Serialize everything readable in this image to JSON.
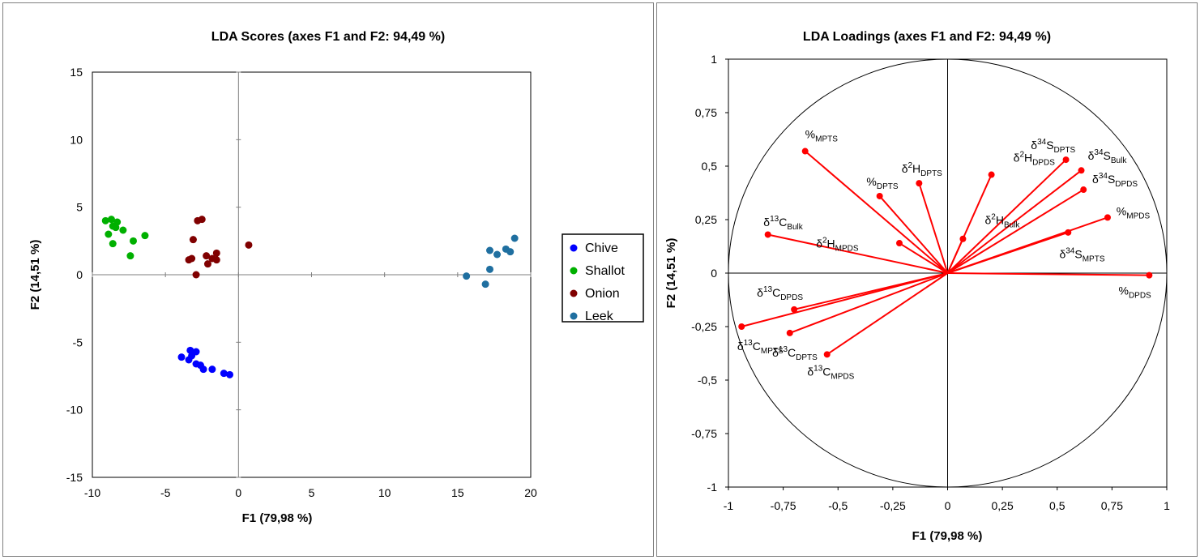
{
  "chart_data": [
    {
      "type": "scatter",
      "title": "LDA Scores (axes F1 and F2: 94,49 %)",
      "xlabel": "F1 (79,98 %)",
      "ylabel": "F2 (14,51 %)",
      "xlim": [
        -10,
        20
      ],
      "ylim": [
        -15,
        15
      ],
      "xticks": [
        -10,
        -5,
        0,
        5,
        10,
        15,
        20
      ],
      "yticks": [
        15,
        10,
        5,
        0,
        -5,
        -10,
        -15
      ],
      "xtick_labels": [
        "-10",
        "-5",
        "0",
        "5",
        "10",
        "15",
        "20"
      ],
      "ytick_labels": [
        "15",
        "10",
        "5",
        "0",
        "-5",
        "-10",
        "-15"
      ],
      "legend_position": "right",
      "series": [
        {
          "name": "Chive",
          "color": "#0000ff",
          "points": [
            [
              -3.9,
              -6.1
            ],
            [
              -3.4,
              -6.3
            ],
            [
              -3.3,
              -5.6
            ],
            [
              -2.9,
              -5.7
            ],
            [
              -3.2,
              -6.0
            ],
            [
              -2.9,
              -6.6
            ],
            [
              -2.6,
              -6.7
            ],
            [
              -2.4,
              -7.0
            ],
            [
              -1.8,
              -7.0
            ],
            [
              -1.0,
              -7.3
            ],
            [
              -0.6,
              -7.4
            ]
          ]
        },
        {
          "name": "Shallot",
          "color": "#00b000",
          "points": [
            [
              -9.1,
              4.0
            ],
            [
              -8.7,
              4.1
            ],
            [
              -8.3,
              3.9
            ],
            [
              -8.4,
              3.5
            ],
            [
              -8.6,
              3.6
            ],
            [
              -7.9,
              3.3
            ],
            [
              -8.9,
              3.0
            ],
            [
              -8.6,
              2.3
            ],
            [
              -7.2,
              2.5
            ],
            [
              -6.4,
              2.9
            ],
            [
              -7.4,
              1.4
            ]
          ]
        },
        {
          "name": "Onion",
          "color": "#800000",
          "points": [
            [
              -2.8,
              4.0
            ],
            [
              -2.5,
              4.1
            ],
            [
              -3.1,
              2.6
            ],
            [
              -2.2,
              1.4
            ],
            [
              -1.5,
              1.6
            ],
            [
              -3.4,
              1.1
            ],
            [
              -3.2,
              1.2
            ],
            [
              -2.1,
              0.8
            ],
            [
              -1.8,
              1.2
            ],
            [
              -1.5,
              1.1
            ],
            [
              -2.9,
              0.0
            ],
            [
              0.7,
              2.2
            ]
          ]
        },
        {
          "name": "Leek",
          "color": "#1f6fa0",
          "points": [
            [
              15.6,
              -0.1
            ],
            [
              17.2,
              1.8
            ],
            [
              17.7,
              1.5
            ],
            [
              18.3,
              1.9
            ],
            [
              18.6,
              1.7
            ],
            [
              18.9,
              2.7
            ],
            [
              17.2,
              0.4
            ],
            [
              16.9,
              -0.7
            ]
          ]
        }
      ]
    },
    {
      "type": "scatter",
      "subtype": "correlation-circle",
      "title": "LDA Loadings (axes F1 and F2: 94,49 %)",
      "xlabel": "F1 (79,98 %)",
      "ylabel": "F2 (14,51 %)",
      "xlim": [
        -1,
        1
      ],
      "ylim": [
        -1,
        1
      ],
      "xticks": [
        -1,
        -0.75,
        -0.5,
        -0.25,
        0,
        0.25,
        0.5,
        0.75,
        1
      ],
      "yticks": [
        1,
        0.75,
        0.5,
        0.25,
        0,
        -0.25,
        -0.5,
        -0.75,
        -1
      ],
      "xtick_labels": [
        "-1",
        "-0,75",
        "-0,5",
        "-0,25",
        "0",
        "0,25",
        "0,5",
        "0,75",
        "1"
      ],
      "ytick_labels": [
        "1",
        "0,75",
        "0,5",
        "0,25",
        "0",
        "-0,25",
        "-0,5",
        "-0,75",
        "-1"
      ],
      "vector_color": "#ff0000",
      "vectors": [
        {
          "pre": "%",
          "sup": "",
          "base": "",
          "sub": "MPTS",
          "x": -0.65,
          "y": 0.57,
          "anchor": "start",
          "dx": 0.0,
          "dy": 0.06
        },
        {
          "pre": "%",
          "sup": "",
          "base": "",
          "sub": "DPTS",
          "x": -0.31,
          "y": 0.36,
          "anchor": "start",
          "dx": -0.06,
          "dy": 0.05
        },
        {
          "pre": "δ",
          "sup": "2",
          "base": "H",
          "sub": "DPTS",
          "x": -0.13,
          "y": 0.42,
          "anchor": "start",
          "dx": -0.08,
          "dy": 0.05
        },
        {
          "pre": "δ",
          "sup": "2",
          "base": "H",
          "sub": "DPDS",
          "x": 0.2,
          "y": 0.46,
          "anchor": "start",
          "dx": 0.1,
          "dy": 0.06
        },
        {
          "pre": "δ",
          "sup": "34",
          "base": "S",
          "sub": "DPTS",
          "x": 0.54,
          "y": 0.53,
          "anchor": "start",
          "dx": -0.16,
          "dy": 0.05
        },
        {
          "pre": "δ",
          "sup": "34",
          "base": "S",
          "sub": "Bulk",
          "x": 0.61,
          "y": 0.48,
          "anchor": "start",
          "dx": 0.03,
          "dy": 0.05
        },
        {
          "pre": "δ",
          "sup": "34",
          "base": "S",
          "sub": "DPDS",
          "x": 0.62,
          "y": 0.39,
          "anchor": "start",
          "dx": 0.04,
          "dy": 0.03
        },
        {
          "pre": "δ",
          "sup": "2",
          "base": "H",
          "sub": "Bulk",
          "x": 0.07,
          "y": 0.16,
          "anchor": "start",
          "dx": 0.1,
          "dy": 0.07
        },
        {
          "pre": "δ",
          "sup": "13",
          "base": "C",
          "sub": "Bulk",
          "x": -0.82,
          "y": 0.18,
          "anchor": "start",
          "dx": -0.02,
          "dy": 0.04
        },
        {
          "pre": "δ",
          "sup": "2",
          "base": "H",
          "sub": "MPDS",
          "x": -0.22,
          "y": 0.14,
          "anchor": "start",
          "dx": -0.38,
          "dy": -0.02
        },
        {
          "pre": "%",
          "sup": "",
          "base": "",
          "sub": "MPDS",
          "x": 0.73,
          "y": 0.26,
          "anchor": "start",
          "dx": 0.04,
          "dy": 0.01
        },
        {
          "pre": "δ",
          "sup": "34",
          "base": "S",
          "sub": "MPTS",
          "x": 0.55,
          "y": 0.19,
          "anchor": "start",
          "dx": -0.04,
          "dy": -0.12
        },
        {
          "pre": "%",
          "sup": "",
          "base": "",
          "sub": "DPDS",
          "x": 0.92,
          "y": -0.01,
          "anchor": "start",
          "dx": -0.14,
          "dy": -0.09
        },
        {
          "pre": "δ",
          "sup": "13",
          "base": "C",
          "sub": "DPDS",
          "x": -0.7,
          "y": -0.17,
          "anchor": "start",
          "dx": -0.17,
          "dy": 0.06
        },
        {
          "pre": "δ",
          "sup": "13",
          "base": "C",
          "sub": "MPTS",
          "x": -0.94,
          "y": -0.25,
          "anchor": "start",
          "dx": -0.02,
          "dy": -0.11
        },
        {
          "pre": "δ",
          "sup": "13",
          "base": "C",
          "sub": "DPTS",
          "x": -0.72,
          "y": -0.28,
          "anchor": "start",
          "dx": -0.08,
          "dy": -0.11
        },
        {
          "pre": "δ",
          "sup": "13",
          "base": "C",
          "sub": "MPDS",
          "x": -0.55,
          "y": -0.38,
          "anchor": "start",
          "dx": -0.09,
          "dy": -0.1
        }
      ]
    }
  ]
}
